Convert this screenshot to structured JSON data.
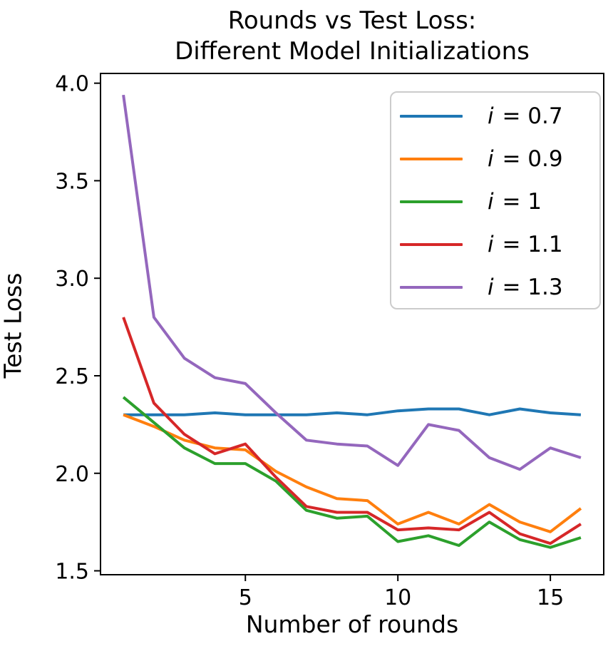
{
  "figure": {
    "title_line1": "Rounds vs Test Loss:",
    "title_line2": "Different Model Initializations",
    "xlabel": "Number of rounds",
    "ylabel": "Test Loss"
  },
  "chart_data": {
    "type": "line",
    "title": "Rounds vs Test Loss: Different Model Initializations",
    "xlabel": "Number of rounds",
    "ylabel": "Test Loss",
    "grid": false,
    "legend_position": "upper right",
    "x": [
      1,
      2,
      3,
      4,
      5,
      6,
      7,
      8,
      9,
      10,
      11,
      12,
      13,
      14,
      15,
      16
    ],
    "xlim": [
      0.25,
      16.75
    ],
    "ylim": [
      1.48,
      4.05
    ],
    "xticks": [
      5,
      10,
      15
    ],
    "xtick_labels": [
      "5",
      "10",
      "15"
    ],
    "yticks": [
      1.5,
      2.0,
      2.5,
      3.0,
      3.5,
      4.0
    ],
    "ytick_labels": [
      "1.5",
      "2.0",
      "2.5",
      "3.0",
      "3.5",
      "4.0"
    ],
    "series": [
      {
        "name": "i = 0.7",
        "label_var": "i",
        "label_val": "0.7",
        "color": "#1f77b4",
        "values": [
          2.3,
          2.3,
          2.3,
          2.31,
          2.3,
          2.3,
          2.3,
          2.31,
          2.3,
          2.32,
          2.33,
          2.33,
          2.3,
          2.33,
          2.31,
          2.3
        ]
      },
      {
        "name": "i = 0.9",
        "label_var": "i",
        "label_val": "0.9",
        "color": "#ff7f0e",
        "values": [
          2.3,
          2.24,
          2.17,
          2.13,
          2.12,
          2.01,
          1.93,
          1.87,
          1.86,
          1.74,
          1.8,
          1.74,
          1.84,
          1.75,
          1.7,
          1.82
        ]
      },
      {
        "name": "i = 1",
        "label_var": "i",
        "label_val": "1",
        "color": "#2ca02c",
        "values": [
          2.39,
          2.26,
          2.13,
          2.05,
          2.05,
          1.96,
          1.81,
          1.77,
          1.78,
          1.65,
          1.68,
          1.63,
          1.75,
          1.66,
          1.62,
          1.67
        ]
      },
      {
        "name": "i = 1.1",
        "label_var": "i",
        "label_val": "1.1",
        "color": "#d62728",
        "values": [
          2.8,
          2.36,
          2.2,
          2.1,
          2.15,
          1.98,
          1.83,
          1.8,
          1.8,
          1.71,
          1.72,
          1.71,
          1.8,
          1.69,
          1.64,
          1.74
        ]
      },
      {
        "name": "i = 1.3",
        "label_var": "i",
        "label_val": "1.3",
        "color": "#9467bd",
        "values": [
          3.94,
          2.8,
          2.59,
          2.49,
          2.46,
          2.31,
          2.17,
          2.15,
          2.14,
          2.04,
          2.25,
          2.22,
          2.08,
          2.02,
          2.13,
          2.08
        ]
      }
    ]
  }
}
